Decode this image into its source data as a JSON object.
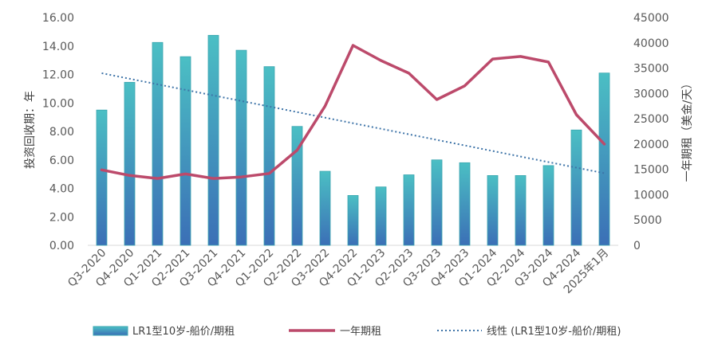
{
  "chart_data": {
    "type": "bar",
    "categories": [
      "Q3-2020",
      "Q4-2020",
      "Q1-2021",
      "Q2-2021",
      "Q3-2021",
      "Q4-2021",
      "Q1-2022",
      "Q2-2022",
      "Q3-2022",
      "Q4-2022",
      "Q1-2023",
      "Q2-2023",
      "Q3-2023",
      "Q4-2023",
      "Q1-2024",
      "Q2-2024",
      "Q3-2024",
      "Q4-2024",
      "2025年1月"
    ],
    "series": [
      {
        "name": "LR1型10岁-船价/期租",
        "type": "bar",
        "axis": "left",
        "values": [
          9.5,
          11.45,
          14.25,
          13.25,
          14.75,
          13.7,
          12.55,
          8.35,
          5.2,
          3.5,
          4.1,
          4.95,
          6.0,
          5.8,
          4.9,
          4.9,
          5.6,
          8.1,
          12.1
        ]
      },
      {
        "name": "一年期租",
        "type": "line",
        "axis": "right",
        "values": [
          14900,
          13800,
          13200,
          14100,
          13200,
          13500,
          14200,
          18800,
          27500,
          39500,
          36500,
          34000,
          28800,
          31500,
          36800,
          37300,
          36200,
          25800,
          20000
        ]
      },
      {
        "name": "线性 (LR1型10岁-船价/期租)",
        "type": "trendline",
        "axis": "left"
      }
    ],
    "ylabel": "投资回收期：年",
    "y2label": "一年期租（美金/天）",
    "ylim": [
      0,
      16
    ],
    "y2lim": [
      0,
      45000
    ],
    "yticks": [
      "0.00",
      "2.00",
      "4.00",
      "6.00",
      "8.00",
      "10.00",
      "12.00",
      "14.00",
      "16.00"
    ],
    "y2ticks": [
      "0",
      "5000",
      "10000",
      "15000",
      "20000",
      "25000",
      "30000",
      "35000",
      "40000",
      "45000"
    ],
    "legend_position": "bottom",
    "grid": false,
    "colors": {
      "bar_top": "#4bbfc4",
      "bar_bottom": "#3b6fb6",
      "bar_edge": "#3aa6b0",
      "line": "#bc4a6b",
      "trendline": "#3e74a8"
    }
  }
}
